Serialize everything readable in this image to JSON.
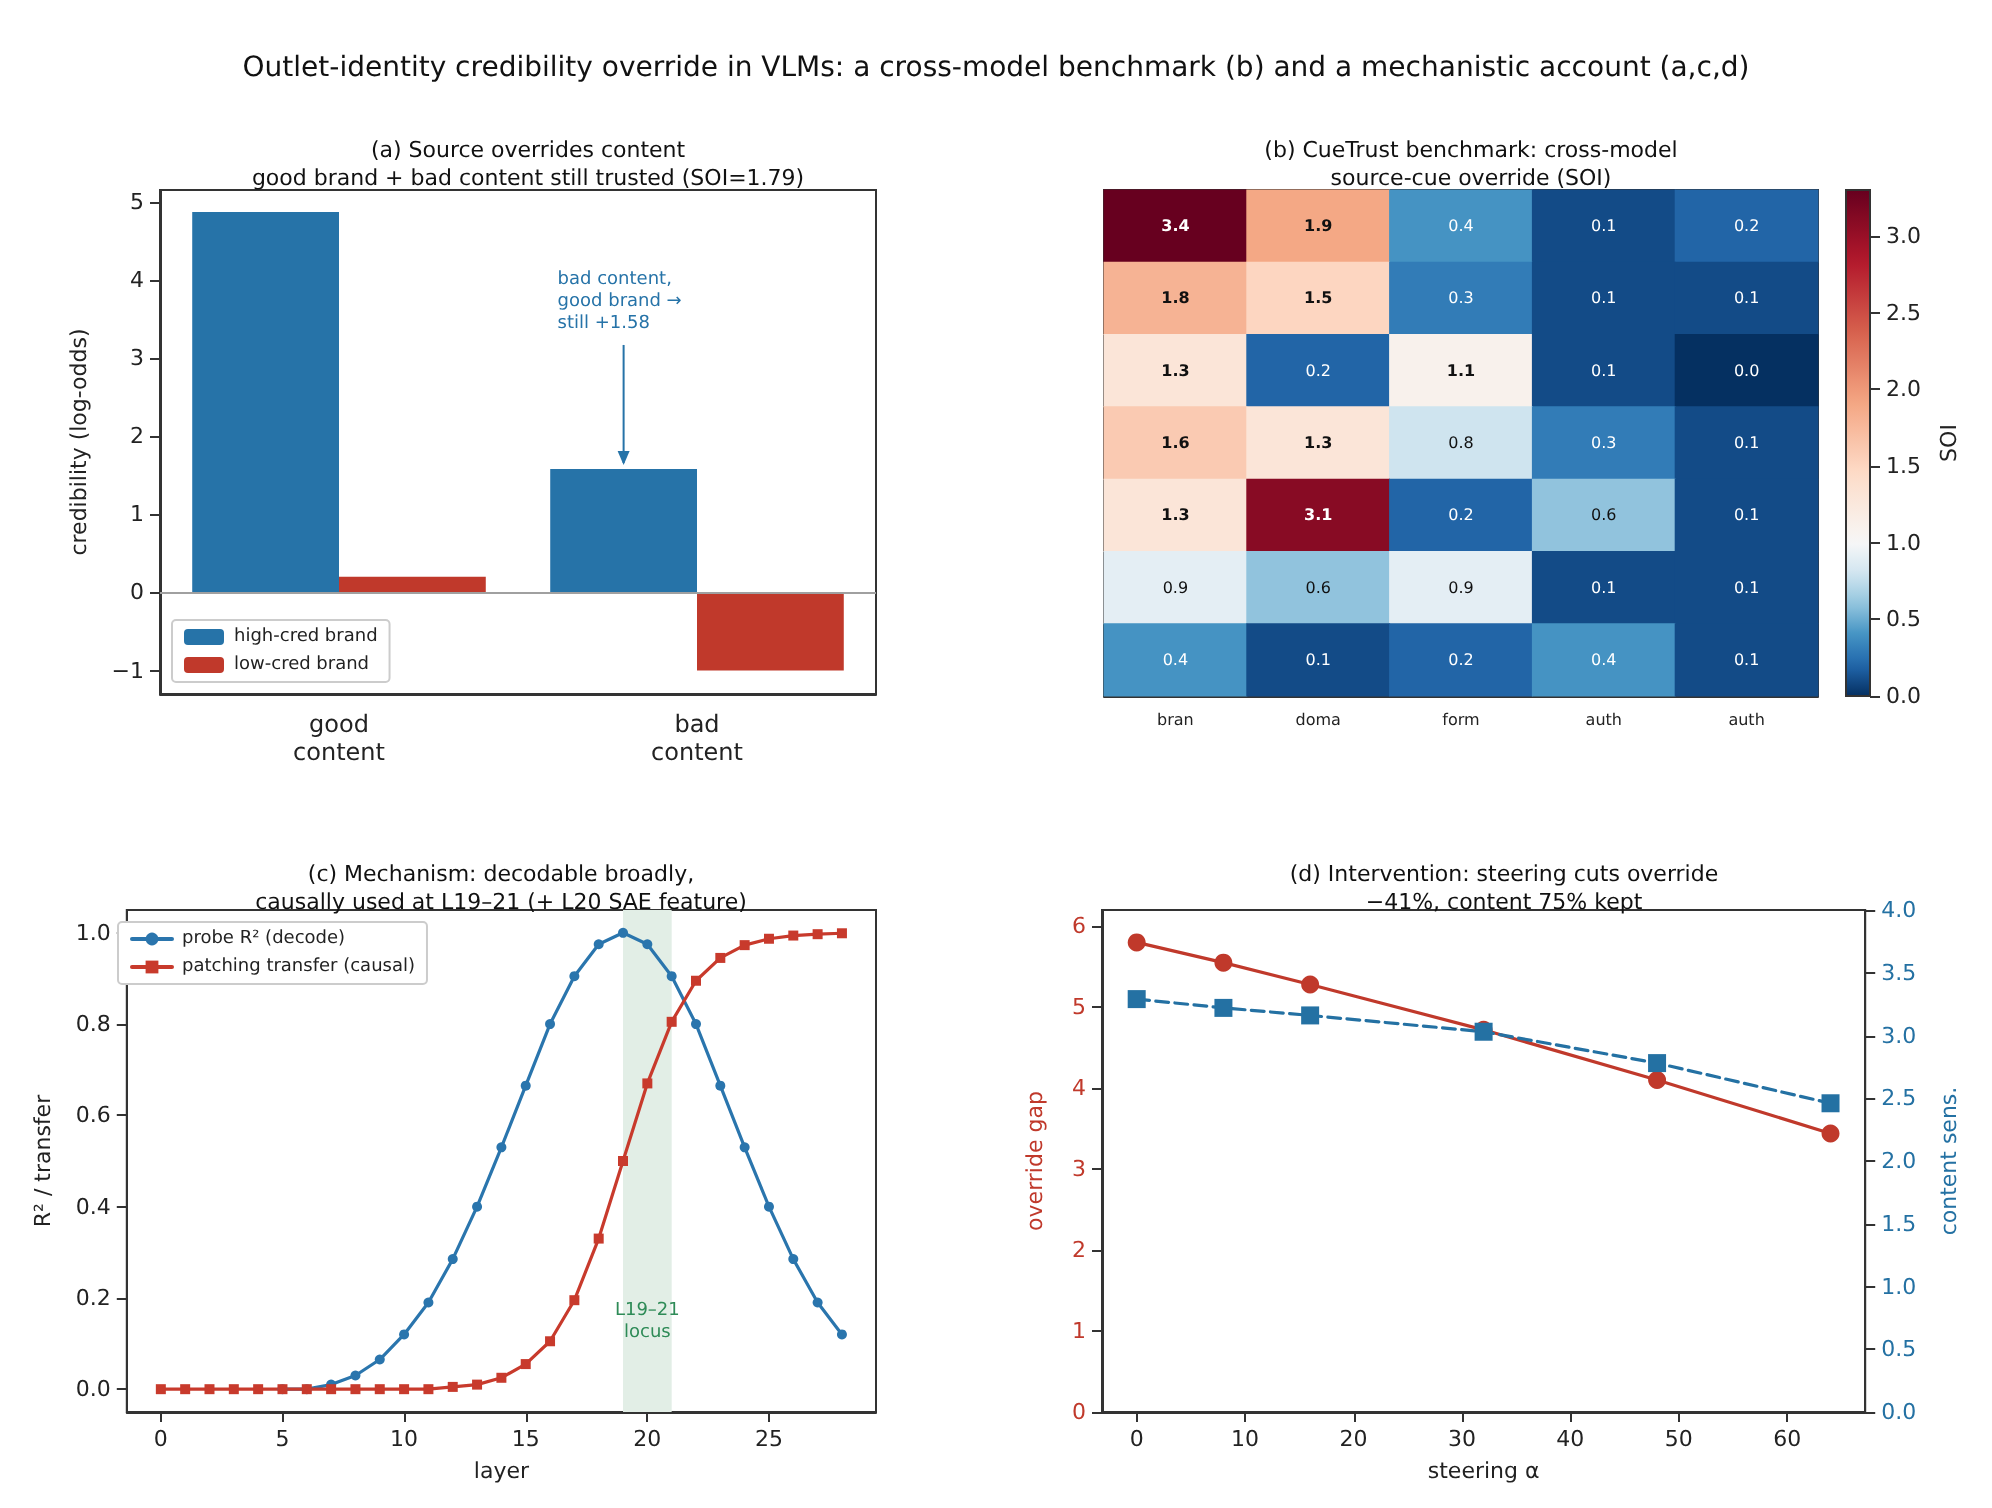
{
  "chart_data": [
    {
      "type": "other",
      "title": "Outlet-identity credibility override in VLMs: a cross-model benchmark (b) and a mechanistic account (a,c,d)"
    },
    {
      "type": "bar",
      "title": "(a) Source overrides content\ngood brand + bad content still trusted (SOI=1.79)",
      "ylabel": "credibility (log-odds)",
      "categories": [
        "good\ncontent",
        "bad\ncontent"
      ],
      "series": [
        {
          "name": "high-cred brand",
          "color": "#2673a8",
          "values": [
            4.87,
            1.58
          ]
        },
        {
          "name": "low-cred brand",
          "color": "#c0392b",
          "values": [
            0.2,
            -1.0
          ]
        }
      ],
      "ylim": [
        -1.3,
        5.15
      ],
      "yticks": [
        {
          "value": -1,
          "label": "−1"
        },
        0,
        1,
        2,
        3,
        4,
        5
      ],
      "ref_lines": [
        {
          "axis": "y",
          "value": 0,
          "color": "#a0a0a0"
        }
      ],
      "annotations": [
        {
          "text": "bad content,\ngood brand →\nstill +1.58",
          "y": 1.58
        }
      ],
      "legend": "bottom left",
      "grid": false
    },
    {
      "type": "heatmap",
      "title": "(b) CueTrust benchmark: cross-model\nsource-cue override (SOI)",
      "clabel": "SOI",
      "categories": [
        "bran",
        "doma",
        "form",
        "auth",
        "auth"
      ],
      "y_categories": [
        null,
        null,
        null,
        null,
        null,
        null,
        null
      ],
      "cells": [
        [
          3.4,
          1.9,
          0.4,
          0.1,
          0.2
        ],
        [
          1.8,
          1.5,
          0.3,
          0.1,
          0.1
        ],
        [
          1.3,
          0.2,
          1.1,
          0.1,
          0.0
        ],
        [
          1.6,
          1.3,
          0.8,
          0.3,
          0.1
        ],
        [
          1.3,
          3.1,
          0.2,
          0.6,
          0.1
        ],
        [
          0.9,
          0.6,
          0.9,
          0.1,
          0.1
        ],
        [
          0.4,
          0.1,
          0.2,
          0.4,
          0.1
        ]
      ],
      "cell_labels": [
        [
          "3.4",
          "1.9",
          "0.4",
          "0.1",
          "0.2"
        ],
        [
          "1.8",
          "1.5",
          "0.3",
          "0.1",
          "0.1"
        ],
        [
          "1.3",
          "0.2",
          "1.1",
          "0.1",
          "0.0"
        ],
        [
          "1.6",
          "1.3",
          "0.8",
          "0.3",
          "0.1"
        ],
        [
          "1.3",
          "3.1",
          "0.2",
          "0.6",
          "0.1"
        ],
        [
          "0.9",
          "0.6",
          "0.9",
          "0.1",
          "0.1"
        ],
        [
          "0.4",
          "0.1",
          "0.2",
          "0.4",
          "0.1"
        ]
      ],
      "clim": [
        0,
        3.3
      ],
      "cticks": [
        {
          "value": 0,
          "label": "0.0"
        },
        0.5,
        {
          "value": 1,
          "label": "1.0"
        },
        1.5,
        {
          "value": 2,
          "label": "2.0"
        },
        2.5,
        {
          "value": 3,
          "label": "3.0"
        }
      ]
    },
    {
      "type": "line",
      "title": "(c) Mechanism: decodable broadly,\ncausally used at L19–21 (+ L20 SAE feature)",
      "xlabel": "layer",
      "ylabel": "R² / transfer",
      "x": [
        0,
        1,
        2,
        3,
        4,
        5,
        6,
        7,
        8,
        9,
        10,
        11,
        12,
        13,
        14,
        15,
        16,
        17,
        18,
        19,
        20,
        21,
        22,
        23,
        24,
        25,
        26,
        27,
        28
      ],
      "series": [
        {
          "name": "probe R² (decode)",
          "color": "#2a75ad",
          "marker": "circle",
          "values": [
            null,
            null,
            null,
            null,
            null,
            0,
            0,
            0.01,
            0.03,
            0.065,
            0.12,
            0.19,
            0.285,
            0.4,
            0.53,
            0.665,
            0.8,
            0.905,
            0.975,
            1.0,
            0.975,
            0.905,
            0.8,
            0.665,
            0.53,
            0.4,
            0.285,
            0.19,
            0.12
          ]
        },
        {
          "name": "patching transfer (causal)",
          "color": "#c83a2c",
          "marker": "square",
          "values": [
            0,
            0,
            0,
            0,
            0,
            0,
            0,
            0,
            0,
            0,
            0,
            0,
            0.005,
            0.01,
            0.025,
            0.055,
            0.105,
            0.195,
            0.33,
            0.5,
            0.67,
            0.805,
            0.895,
            0.945,
            0.973,
            0.987,
            0.994,
            0.997,
            0.999
          ]
        }
      ],
      "xlim": [
        -1.4,
        29.4
      ],
      "xticks": [
        0,
        5,
        10,
        15,
        20,
        25
      ],
      "ylim": [
        -0.05,
        1.05
      ],
      "yticks": [
        {
          "value": 0,
          "label": "0.0"
        },
        0.2,
        0.4,
        0.6,
        0.8,
        {
          "value": 1,
          "label": "1.0"
        }
      ],
      "bands": [
        {
          "axis": "x",
          "from": 19,
          "to": 21,
          "label": "L19–21\nlocus",
          "color": "#e2eee6"
        }
      ],
      "legend": "top left",
      "grid": false,
      "line_style": "solid"
    },
    {
      "type": "line",
      "title": "(d) Intervention: steering cuts override\n−41%, content 75% kept",
      "xlabel": "steering α",
      "ylabel": "override gap",
      "y2label": "content sens.",
      "x": [
        0,
        8,
        16,
        32,
        48,
        64
      ],
      "series": [
        {
          "color": "#c0392b",
          "marker": "circle",
          "line_style": "solid",
          "values": [
            5.8,
            5.55,
            5.28,
            4.72,
            4.1,
            3.44
          ]
        },
        {
          "color": "#2471a3",
          "marker": "square",
          "line_style": "dashed",
          "axis": "y2",
          "values": [
            3.29,
            3.22,
            3.16,
            3.03,
            2.78,
            2.46
          ]
        }
      ],
      "xlim": [
        -3.2,
        67.2
      ],
      "xticks": [
        0,
        10,
        20,
        30,
        40,
        50,
        60
      ],
      "ylim": [
        0,
        6.2
      ],
      "yticks": [
        0,
        1,
        2,
        3,
        4,
        5,
        6
      ],
      "y2lim": [
        0,
        4
      ],
      "y2ticks": [
        {
          "value": 0,
          "label": "0.0"
        },
        0.5,
        {
          "value": 1,
          "label": "1.0"
        },
        1.5,
        {
          "value": 2,
          "label": "2.0"
        },
        2.5,
        {
          "value": 3,
          "label": "3.0"
        },
        3.5,
        {
          "value": 4,
          "label": "4.0"
        }
      ],
      "grid": false
    }
  ]
}
